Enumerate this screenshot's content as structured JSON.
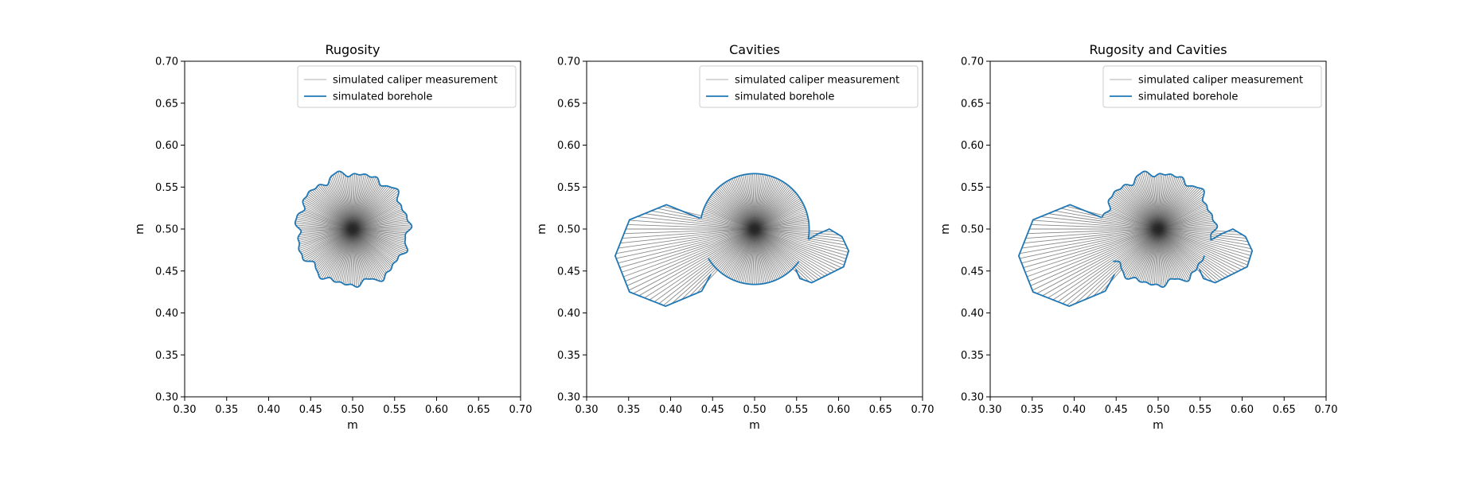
{
  "chart_data": [
    {
      "type": "line",
      "title": "Rugosity",
      "xlabel": "m",
      "ylabel": "m",
      "xlim": [
        0.3,
        0.7
      ],
      "ylim": [
        0.3,
        0.7
      ],
      "xticks": [
        "0.30",
        "0.35",
        "0.40",
        "0.45",
        "0.50",
        "0.55",
        "0.60",
        "0.65",
        "0.70"
      ],
      "yticks": [
        "0.30",
        "0.35",
        "0.40",
        "0.45",
        "0.50",
        "0.55",
        "0.60",
        "0.65",
        "0.70"
      ],
      "legend": {
        "placement": "upper right",
        "entries": [
          "simulated caliper measurement",
          "simulated borehole"
        ]
      },
      "series": [
        {
          "name": "simulated borehole",
          "color": "#1f77b4",
          "center": [
            0.5,
            0.5
          ],
          "radius_x": 0.066,
          "radius_y": 0.066,
          "rugosity_amplitude": 0.003
        },
        {
          "name": "simulated caliper measurement",
          "color": "#c0c0c0",
          "rays_from_center": 90
        }
      ]
    },
    {
      "type": "line",
      "title": "Cavities",
      "xlabel": "m",
      "ylabel": "m",
      "xlim": [
        0.3,
        0.7
      ],
      "ylim": [
        0.3,
        0.7
      ],
      "xticks": [
        "0.30",
        "0.35",
        "0.40",
        "0.45",
        "0.50",
        "0.55",
        "0.60",
        "0.65",
        "0.70"
      ],
      "yticks": [
        "0.30",
        "0.35",
        "0.40",
        "0.45",
        "0.50",
        "0.55",
        "0.60",
        "0.65",
        "0.70"
      ],
      "legend": {
        "placement": "upper right",
        "entries": [
          "simulated caliper measurement",
          "simulated borehole"
        ]
      },
      "series": [
        {
          "name": "simulated borehole",
          "color": "#1f77b4",
          "center": [
            0.5,
            0.5
          ],
          "radius_x": 0.065,
          "radius_y": 0.066,
          "cavities": [
            [
              [
                0.437,
                0.512
              ],
              [
                0.395,
                0.529
              ],
              [
                0.351,
                0.511
              ],
              [
                0.334,
                0.468
              ],
              [
                0.351,
                0.425
              ],
              [
                0.394,
                0.408
              ],
              [
                0.437,
                0.426
              ],
              [
                0.448,
                0.446
              ]
            ],
            [
              [
                0.563,
                0.487
              ],
              [
                0.575,
                0.494
              ],
              [
                0.589,
                0.5
              ],
              [
                0.604,
                0.491
              ],
              [
                0.612,
                0.474
              ],
              [
                0.606,
                0.455
              ],
              [
                0.588,
                0.446
              ],
              [
                0.568,
                0.436
              ],
              [
                0.554,
                0.441
              ],
              [
                0.549,
                0.452
              ]
            ]
          ]
        },
        {
          "name": "simulated caliper measurement",
          "color": "#c0c0c0",
          "rays_from_center": 90
        }
      ]
    },
    {
      "type": "line",
      "title": "Rugosity and Cavities",
      "xlabel": "m",
      "ylabel": "m",
      "xlim": [
        0.3,
        0.7
      ],
      "ylim": [
        0.3,
        0.7
      ],
      "xticks": [
        "0.30",
        "0.35",
        "0.40",
        "0.45",
        "0.50",
        "0.55",
        "0.60",
        "0.65",
        "0.70"
      ],
      "yticks": [
        "0.30",
        "0.35",
        "0.40",
        "0.45",
        "0.50",
        "0.55",
        "0.60",
        "0.65",
        "0.70"
      ],
      "legend": {
        "placement": "upper right",
        "entries": [
          "simulated caliper measurement",
          "simulated borehole"
        ]
      },
      "series": [
        {
          "name": "simulated borehole",
          "color": "#1f77b4",
          "center": [
            0.5,
            0.5
          ],
          "radius_x": 0.066,
          "radius_y": 0.066,
          "rugosity_amplitude": 0.003,
          "cavities": [
            [
              [
                0.437,
                0.512
              ],
              [
                0.395,
                0.529
              ],
              [
                0.351,
                0.511
              ],
              [
                0.334,
                0.468
              ],
              [
                0.351,
                0.425
              ],
              [
                0.394,
                0.408
              ],
              [
                0.437,
                0.426
              ],
              [
                0.448,
                0.446
              ]
            ],
            [
              [
                0.563,
                0.487
              ],
              [
                0.575,
                0.494
              ],
              [
                0.589,
                0.5
              ],
              [
                0.604,
                0.491
              ],
              [
                0.612,
                0.474
              ],
              [
                0.606,
                0.455
              ],
              [
                0.588,
                0.446
              ],
              [
                0.568,
                0.436
              ],
              [
                0.554,
                0.441
              ],
              [
                0.549,
                0.452
              ]
            ]
          ]
        },
        {
          "name": "simulated caliper measurement",
          "color": "#c0c0c0",
          "rays_from_center": 90
        }
      ]
    }
  ]
}
